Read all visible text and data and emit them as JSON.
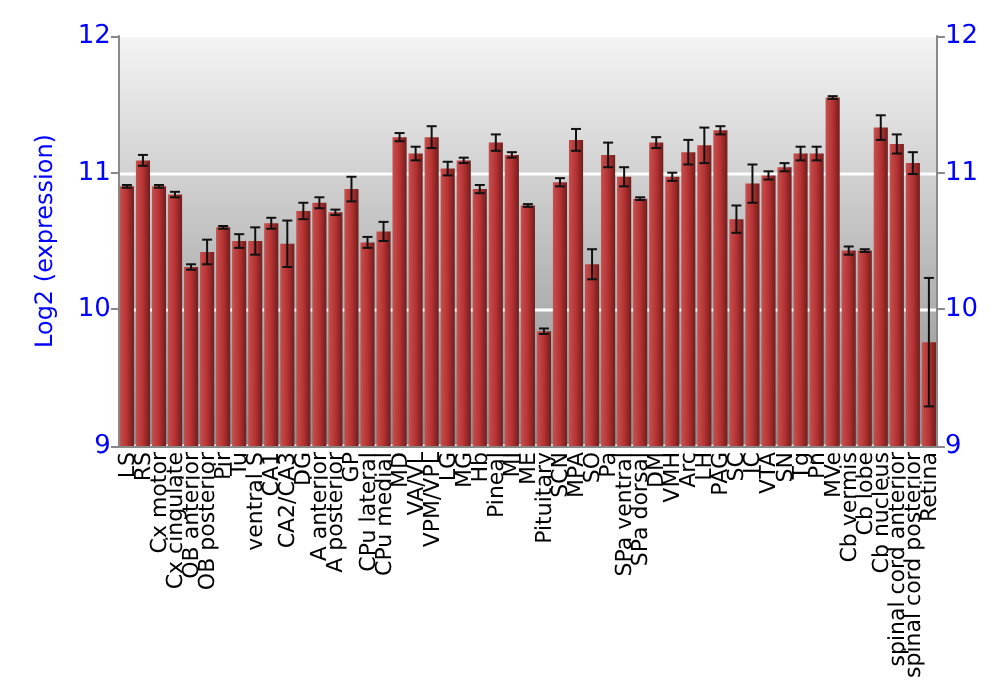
{
  "chart_data": {
    "type": "bar",
    "ylabel": "Log2 (expression)",
    "categories": [
      "LS",
      "RS",
      "Cx motor",
      "Cx cingulate",
      "OB anterior",
      "OB posterior",
      "Pir",
      "Tu",
      "ventral S",
      "CA1",
      "CA2/CA3",
      "DG",
      "A anterior",
      "A posterior",
      "GP",
      "CPu lateral",
      "CPu medial",
      "MD",
      "VA/VL",
      "VPM/VPL",
      "LG",
      "MG",
      "Hb",
      "Pineal",
      "MI",
      "ME",
      "Pituitary",
      "SCN",
      "MPA",
      "SO",
      "Pa",
      "SPa ventral",
      "SPa dorsal",
      "DM",
      "VMH",
      "Arc",
      "LH",
      "PAG",
      "SC",
      "IC",
      "VTA",
      "SN",
      "Tg",
      "Pn",
      "MVe",
      "Cb vermis",
      "Cb lobe",
      "Cb nucleus",
      "spinal cord anterior",
      "spinal cord posterior",
      "Retina"
    ],
    "values": [
      10.9,
      11.09,
      10.9,
      10.84,
      10.31,
      10.42,
      10.6,
      10.5,
      10.5,
      10.63,
      10.48,
      10.72,
      10.78,
      10.71,
      10.88,
      10.49,
      10.57,
      11.26,
      11.14,
      11.26,
      11.03,
      11.09,
      10.88,
      11.22,
      11.13,
      10.76,
      9.84,
      10.93,
      11.24,
      10.33,
      11.13,
      10.97,
      10.81,
      11.22,
      10.97,
      11.15,
      11.2,
      11.31,
      10.66,
      10.92,
      10.98,
      11.04,
      11.14,
      11.14,
      11.55,
      10.43,
      10.43,
      11.33,
      11.21,
      11.07,
      9.76
    ],
    "errors": [
      0.01,
      0.04,
      0.01,
      0.02,
      0.02,
      0.09,
      0.01,
      0.05,
      0.1,
      0.04,
      0.17,
      0.06,
      0.04,
      0.02,
      0.09,
      0.04,
      0.07,
      0.03,
      0.05,
      0.08,
      0.05,
      0.02,
      0.03,
      0.06,
      0.02,
      0.01,
      0.02,
      0.03,
      0.08,
      0.11,
      0.09,
      0.07,
      0.01,
      0.04,
      0.03,
      0.09,
      0.13,
      0.03,
      0.1,
      0.14,
      0.03,
      0.03,
      0.05,
      0.05,
      0.01,
      0.03,
      0.01,
      0.09,
      0.07,
      0.08,
      0.47
    ],
    "color": "#b83232",
    "ylim": [
      9,
      12
    ],
    "yticks": [
      9,
      10,
      11,
      12
    ],
    "y2lim": [
      9,
      12
    ],
    "y2ticks": [
      9,
      10,
      11,
      12
    ],
    "grid": "y"
  }
}
